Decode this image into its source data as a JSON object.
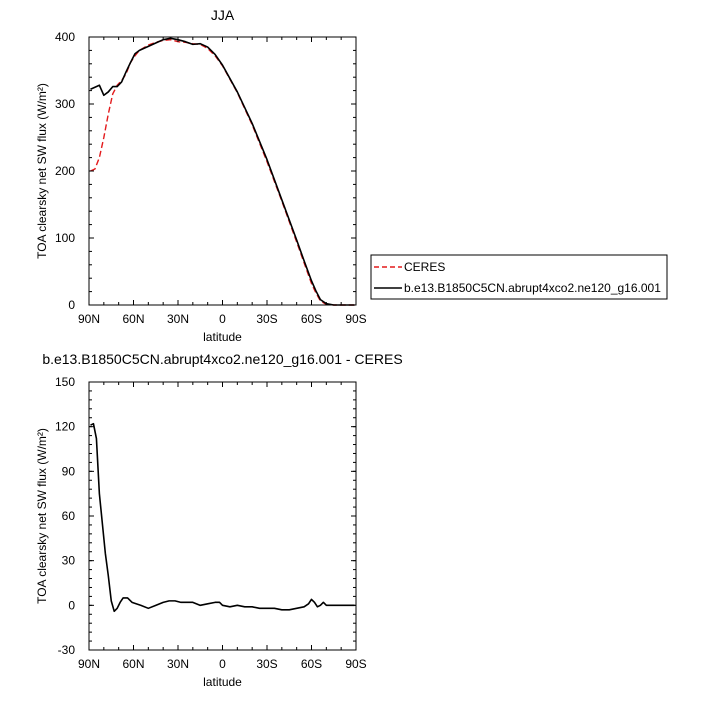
{
  "chart_data": [
    {
      "type": "line",
      "title": "JJA",
      "xlabel": "latitude",
      "ylabel": "TOA clearsky net SW flux (W/m²)",
      "xlim": [
        90,
        -90
      ],
      "ylim": [
        0,
        400
      ],
      "x_ticks": [
        90,
        60,
        30,
        0,
        -30,
        -60,
        -90
      ],
      "x_tick_labels": [
        "90N",
        "60N",
        "30N",
        "0",
        "30S",
        "60S",
        "90S"
      ],
      "y_ticks": [
        0,
        100,
        200,
        300,
        400
      ],
      "y_tick_labels": [
        "0",
        "100",
        "200",
        "300",
        "400"
      ],
      "legend_position": "right",
      "grid": false,
      "series": [
        {
          "name": "CERES",
          "color": "#e31a1c",
          "dash": "dashed",
          "x": [
            89,
            86,
            83,
            80,
            77,
            74,
            71,
            68,
            65,
            62,
            59,
            56,
            50,
            45,
            40,
            35,
            30,
            25,
            20,
            15,
            10,
            5,
            0,
            -10,
            -20,
            -30,
            -40,
            -50,
            -55,
            -60,
            -63,
            -66,
            -70,
            -75,
            -80,
            -85,
            -89
          ],
          "y": [
            200,
            203,
            220,
            250,
            285,
            315,
            328,
            335,
            345,
            362,
            372,
            380,
            388,
            392,
            395,
            396,
            393,
            392,
            390,
            389,
            383,
            372,
            357,
            317,
            269,
            214,
            155,
            94,
            63,
            32,
            18,
            6,
            1,
            0,
            0,
            0,
            0
          ]
        },
        {
          "name": "b.e13.B1850C5CN.abrupt4xco2.ne120_g16.001",
          "color": "#000000",
          "dash": "solid",
          "x": [
            89,
            86,
            83,
            80,
            77,
            74,
            71,
            68,
            65,
            62,
            59,
            56,
            50,
            45,
            40,
            35,
            30,
            25,
            20,
            15,
            10,
            5,
            0,
            -10,
            -20,
            -30,
            -40,
            -50,
            -55,
            -60,
            -63,
            -66,
            -70,
            -75,
            -80,
            -85,
            -89
          ],
          "y": [
            322,
            325,
            328,
            313,
            318,
            326,
            326,
            333,
            348,
            362,
            375,
            380,
            386,
            391,
            396,
            398,
            396,
            393,
            389,
            390,
            385,
            374,
            358,
            318,
            271,
            217,
            157,
            97,
            66,
            36,
            21,
            8,
            2,
            0,
            0,
            0,
            0
          ]
        }
      ]
    },
    {
      "type": "line",
      "title": "b.e13.B1850C5CN.abrupt4xco2.ne120_g16.001 - CERES",
      "xlabel": "latitude",
      "ylabel": "TOA clearsky net SW flux (W/m²)",
      "xlim": [
        90,
        -90
      ],
      "ylim": [
        -30,
        150
      ],
      "x_ticks": [
        90,
        60,
        30,
        0,
        -30,
        -60,
        -90
      ],
      "x_tick_labels": [
        "90N",
        "60N",
        "30N",
        "0",
        "30S",
        "60S",
        "90S"
      ],
      "y_ticks": [
        -30,
        0,
        30,
        60,
        90,
        120,
        150
      ],
      "y_tick_labels": [
        "-30",
        "0",
        "30",
        "60",
        "90",
        "120",
        "150"
      ],
      "grid": false,
      "series": [
        {
          "color": "#000000",
          "dash": "solid",
          "x": [
            89,
            87,
            85,
            83,
            81,
            79,
            77,
            75,
            73,
            71,
            69,
            67,
            64,
            61,
            58,
            55,
            50,
            45,
            40,
            36,
            32,
            28,
            25,
            20,
            15,
            10,
            5,
            2,
            0,
            -5,
            -10,
            -15,
            -20,
            -25,
            -30,
            -35,
            -40,
            -45,
            -50,
            -55,
            -58,
            -60,
            -62,
            -64,
            -66,
            -68,
            -70,
            -75,
            -80,
            -85,
            -89
          ],
          "y": [
            121,
            122,
            112,
            75,
            55,
            35,
            20,
            3,
            -4,
            -2,
            2,
            5,
            5,
            2,
            1,
            0,
            -2,
            0,
            2,
            3,
            3,
            2,
            2,
            2,
            0,
            1,
            2,
            2,
            0,
            -1,
            0,
            -1,
            -1,
            -2,
            -2,
            -2,
            -3,
            -3,
            -2,
            -1,
            1,
            4,
            2,
            -1,
            0,
            2,
            0,
            0,
            0,
            0,
            0
          ]
        }
      ]
    }
  ]
}
